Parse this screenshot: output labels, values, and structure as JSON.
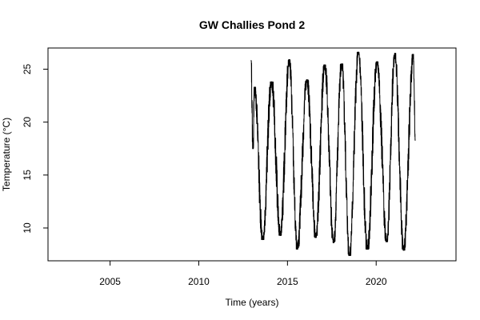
{
  "chart_data": {
    "type": "line",
    "title": "GW Challies Pond 2",
    "xlabel": "Time (years)",
    "ylabel": "Temperature (°C)",
    "xlim": [
      2001.5,
      2024.5
    ],
    "ylim": [
      6.9,
      27.0
    ],
    "x_ticks": [
      2005,
      2010,
      2015,
      2020
    ],
    "y_ticks": [
      10,
      15,
      20,
      25
    ],
    "grid": false,
    "series": [
      {
        "color": "#000000",
        "annual_extremes": [
          {
            "x": 2012.95,
            "y": 25.8
          },
          {
            "x": 2013.05,
            "y": 17.5
          },
          {
            "x": 2013.15,
            "y": 23.3
          },
          {
            "x": 2013.6,
            "y": 8.9
          },
          {
            "x": 2014.1,
            "y": 23.8
          },
          {
            "x": 2014.6,
            "y": 9.3
          },
          {
            "x": 2015.1,
            "y": 25.9
          },
          {
            "x": 2015.55,
            "y": 8.0
          },
          {
            "x": 2016.1,
            "y": 24.0
          },
          {
            "x": 2016.6,
            "y": 9.1
          },
          {
            "x": 2017.1,
            "y": 25.4
          },
          {
            "x": 2017.6,
            "y": 8.6
          },
          {
            "x": 2018.05,
            "y": 25.5
          },
          {
            "x": 2018.5,
            "y": 7.4
          },
          {
            "x": 2019.0,
            "y": 26.6
          },
          {
            "x": 2019.5,
            "y": 8.0
          },
          {
            "x": 2020.05,
            "y": 25.7
          },
          {
            "x": 2020.6,
            "y": 8.7
          },
          {
            "x": 2021.05,
            "y": 26.5
          },
          {
            "x": 2021.55,
            "y": 7.9
          },
          {
            "x": 2022.1,
            "y": 26.4
          },
          {
            "x": 2022.2,
            "y": 18.3
          }
        ]
      }
    ]
  }
}
